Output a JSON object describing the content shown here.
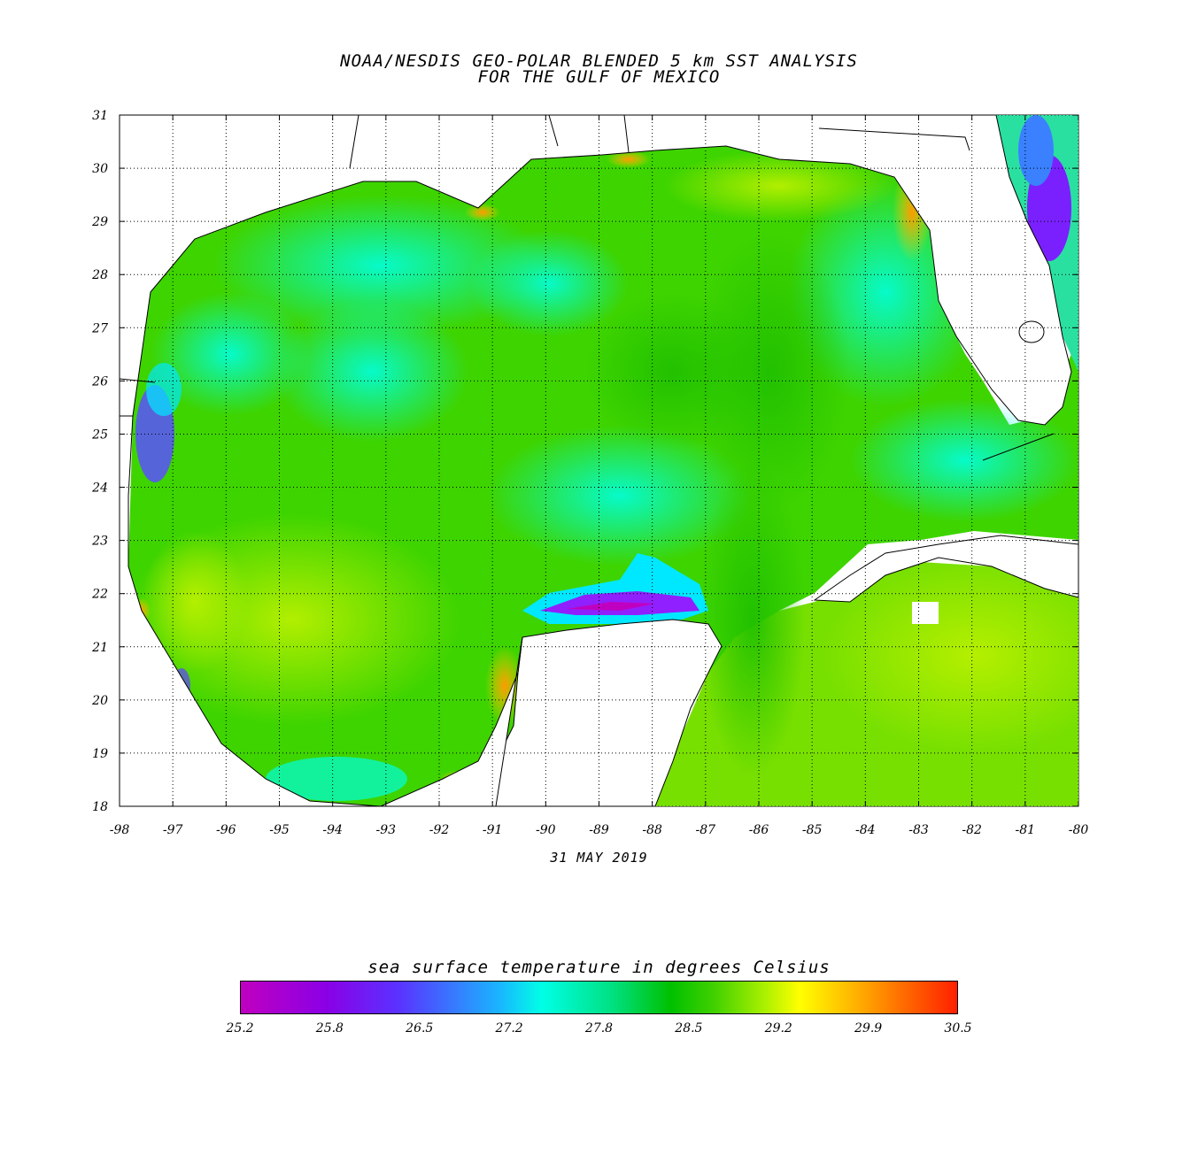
{
  "header": {
    "title_line1": "NOAA/NESDIS GEO-POLAR BLENDED 5 km SST ANALYSIS",
    "title_line2": "FOR THE GULF OF MEXICO"
  },
  "map": {
    "lon_range": [
      -98,
      -80
    ],
    "lat_range": [
      18,
      31
    ],
    "lon_ticks": [
      "-98",
      "-97",
      "-96",
      "-95",
      "-94",
      "-93",
      "-92",
      "-91",
      "-90",
      "-89",
      "-88",
      "-87",
      "-86",
      "-85",
      "-84",
      "-83",
      "-82",
      "-81",
      "-80"
    ],
    "lat_ticks": [
      "18",
      "19",
      "20",
      "21",
      "22",
      "23",
      "24",
      "25",
      "26",
      "27",
      "28",
      "29",
      "30",
      "31"
    ],
    "grid": "dotted",
    "land_color": "#ffffff",
    "coastline_color": "#000000"
  },
  "date": "31 MAY 2019",
  "colorbar": {
    "title": "sea surface temperature in degrees Celsius",
    "labels": [
      "25.2",
      "25.8",
      "26.5",
      "27.2",
      "27.8",
      "28.5",
      "29.2",
      "29.9",
      "30.5"
    ],
    "min": 25.2,
    "max": 30.5
  }
}
